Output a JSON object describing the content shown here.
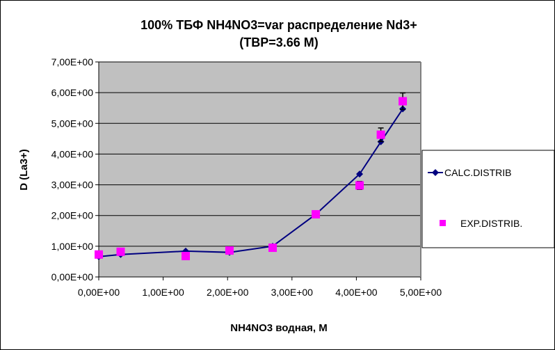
{
  "chart_data": {
    "type": "line",
    "title_line1": "100%  ТБФ  NH4NO3=var распределение Nd3+",
    "title_line2": "(TBP=3.66 M)",
    "xlabel": "NH4NO3  водная, М",
    "ylabel": "D (La3+)",
    "xlim": [
      0,
      5
    ],
    "ylim": [
      0,
      7
    ],
    "x_ticks": [
      0,
      1,
      2,
      3,
      4,
      5
    ],
    "x_tick_labels": [
      "0,00E+00",
      "1,00E+00",
      "2,00E+00",
      "3,00E+00",
      "4,00E+00",
      "5,00E+00"
    ],
    "y_ticks": [
      0,
      1,
      2,
      3,
      4,
      5,
      6,
      7
    ],
    "y_tick_labels": [
      "0,00E+00",
      "1,00E+00",
      "2,00E+00",
      "3,00E+00",
      "4,00E+00",
      "5,00E+00",
      "6,00E+00",
      "7,00E+00"
    ],
    "grid": "horizontal",
    "legend_position": "right",
    "series": [
      {
        "name": "CALC.DISTRIB",
        "style": "line-diamond",
        "color": "#000080",
        "x": [
          0,
          0.34,
          1.35,
          2.03,
          2.7,
          3.37,
          4.05,
          4.38,
          4.72
        ],
        "y": [
          0.66,
          0.73,
          0.84,
          0.8,
          1.0,
          2.04,
          3.35,
          4.4,
          5.47
        ]
      },
      {
        "name": "EXP.DISTRIB.",
        "style": "square-marker",
        "color": "#FF00FF",
        "x": [
          0,
          0.34,
          1.35,
          2.03,
          2.7,
          3.37,
          4.05,
          4.38,
          4.72
        ],
        "y": [
          0.73,
          0.82,
          0.68,
          0.86,
          0.95,
          2.04,
          2.98,
          4.63,
          5.72
        ],
        "error": [
          0.04,
          0.04,
          0.04,
          0.04,
          0.04,
          0.05,
          0.13,
          0.22,
          0.27
        ]
      }
    ]
  }
}
